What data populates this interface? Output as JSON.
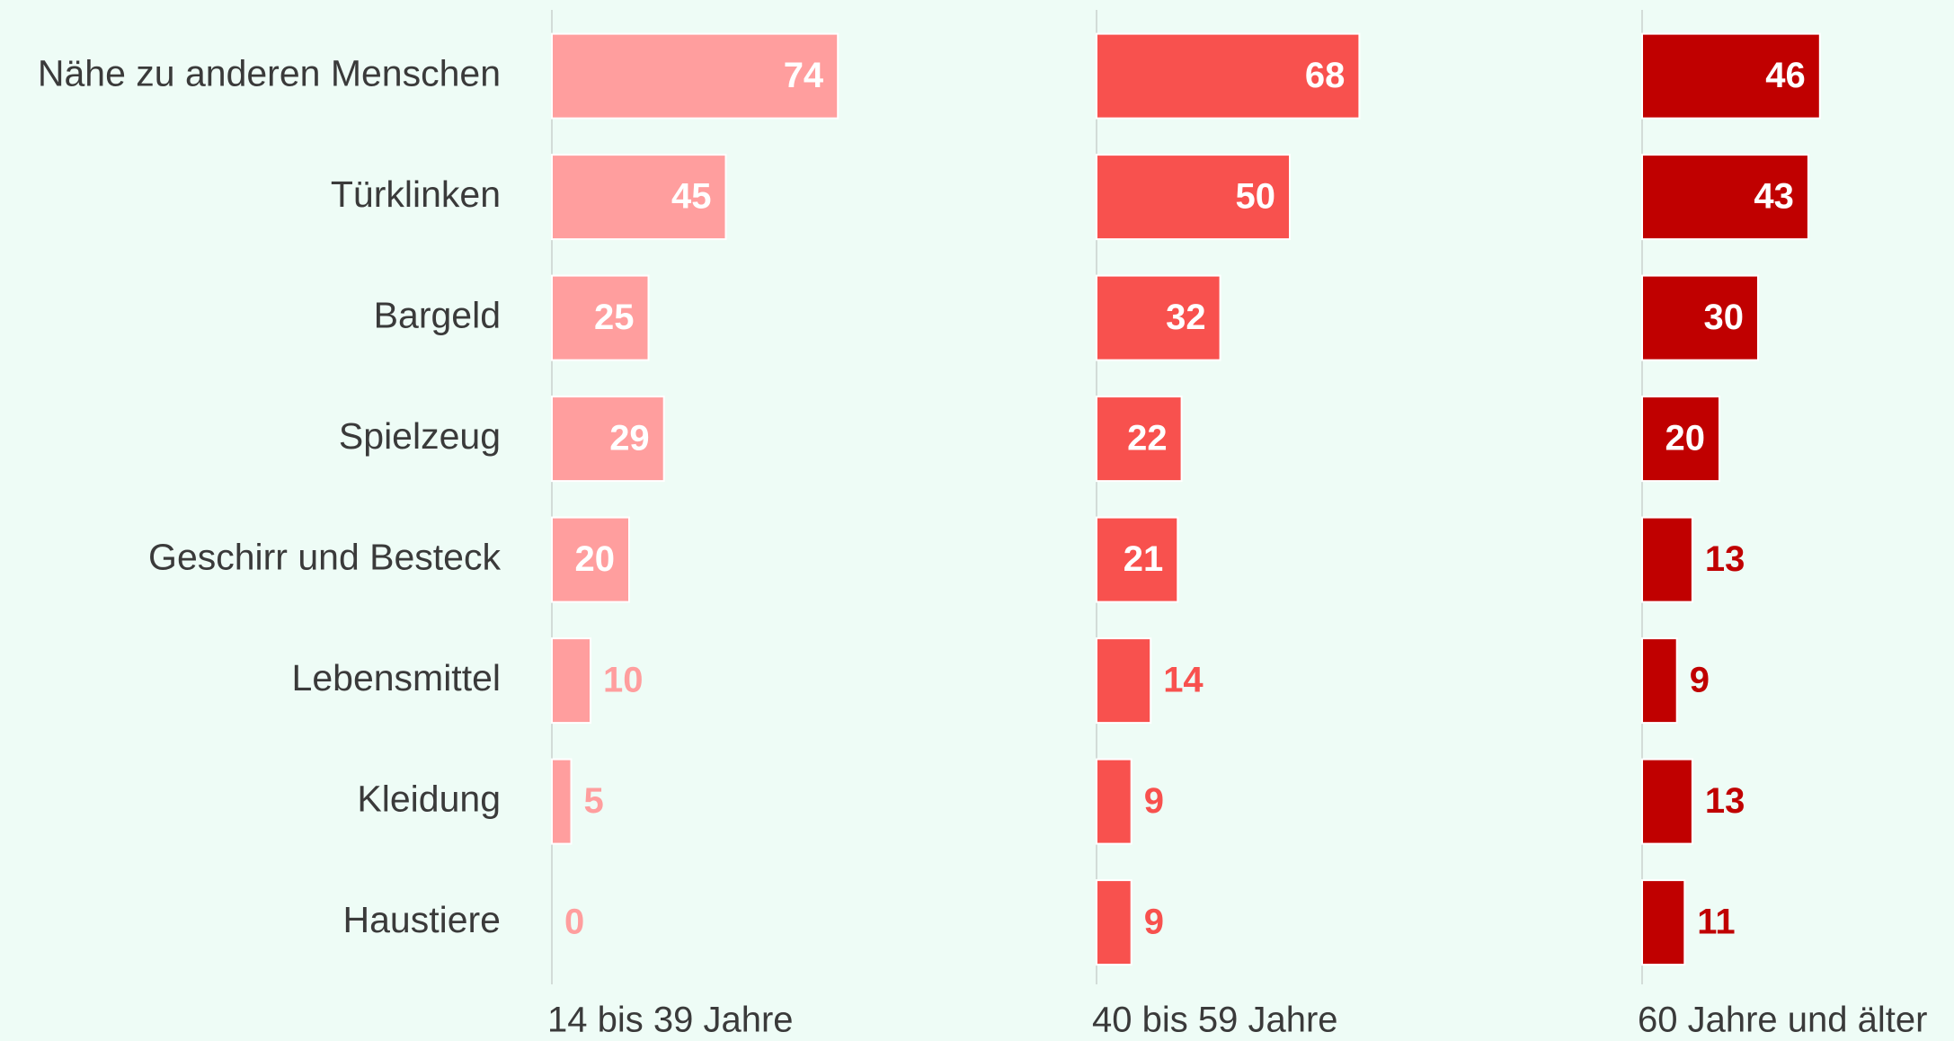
{
  "chart_data": {
    "type": "bar",
    "orientation": "horizontal",
    "categories": [
      "Nähe zu anderen Menschen",
      "Türklinken",
      "Bargeld",
      "Spielzeug",
      "Geschirr und Besteck",
      "Lebensmittel",
      "Kleidung",
      "Haustiere"
    ],
    "xlim": [
      0,
      140
    ],
    "series": [
      {
        "name": "14 bis 39 Jahre",
        "color": "#ff9e9e",
        "values": [
          74,
          45,
          25,
          29,
          20,
          10,
          5,
          0
        ]
      },
      {
        "name": "40 bis 59 Jahre",
        "color": "#f8514e",
        "values": [
          68,
          50,
          32,
          22,
          21,
          14,
          9,
          9
        ]
      },
      {
        "name": "60 Jahre und älter",
        "color": "#c00000",
        "values": [
          46,
          43,
          30,
          20,
          13,
          9,
          13,
          11
        ]
      }
    ]
  }
}
